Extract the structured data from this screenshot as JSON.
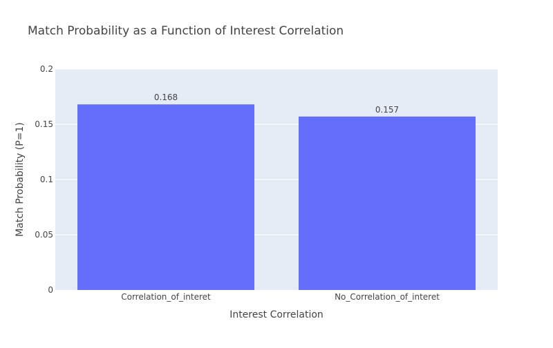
{
  "chart_data": {
    "type": "bar",
    "title": "Match Probability as a Function of Interest Correlation",
    "xlabel": "Interest Correlation",
    "ylabel": "Match Probability (P=1)",
    "categories": [
      "Correlation_of_interet",
      "No_Correlation_of_interet"
    ],
    "values": [
      0.168,
      0.157
    ],
    "data_labels": [
      "0.168",
      "0.157"
    ],
    "ylim": [
      0,
      0.2
    ],
    "yticks": [
      0,
      0.05,
      0.1,
      0.15,
      0.2
    ],
    "ytick_labels": [
      "0",
      "0.05",
      "0.1",
      "0.15",
      "0.2"
    ],
    "grid": true,
    "colors": {
      "bar": "#636efa",
      "plot_background": "#e5ecf6",
      "grid": "#ffffff",
      "text": "#444444",
      "title": "#444444"
    }
  }
}
